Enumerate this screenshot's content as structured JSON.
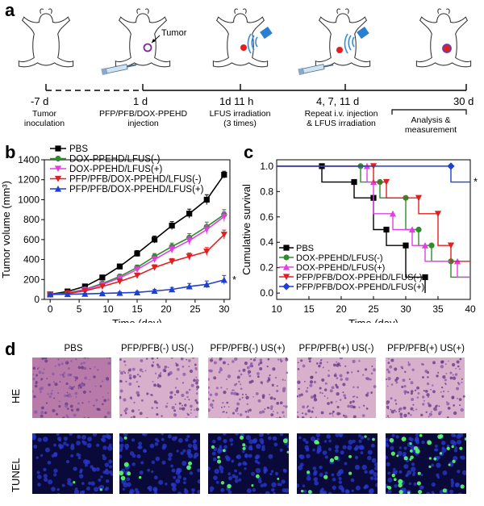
{
  "panel_a": {
    "letter": "a",
    "tumor_label": "Tumor",
    "timeline": [
      {
        "day": "-7 d",
        "desc": "Tumor\ninoculation"
      },
      {
        "day": "1 d",
        "desc": "PFP/PFB/DOX-PPEHD\ninjection"
      },
      {
        "day": "1d 11 h",
        "desc": "LFUS irradiation\n(3 times)"
      },
      {
        "day": "4, 7, 11 d",
        "desc": "Repeat i.v. injection\n& LFUS irradiation"
      },
      {
        "day": "30 d",
        "desc": "Analysis &\nmeasurement"
      }
    ]
  },
  "panel_b": {
    "letter": "b"
  },
  "panel_c": {
    "letter": "c"
  },
  "panel_d": {
    "letter": "d",
    "columns": [
      "PBS",
      "PFP/PFB(-) US(-)",
      "PFP/PFB(-) US(+)",
      "PFP/PFB(+) US(-)",
      "PFP/PFB(+) US(+)"
    ],
    "rows": [
      "HE",
      "TUNEL"
    ]
  },
  "colors": {
    "pbs": "#000000",
    "dox_lfus_minus": "#2e8b2e",
    "dox_lfus_plus": "#e040e0",
    "pfp_lfus_minus": "#e02020",
    "pfp_lfus_plus": "#1f3fd0",
    "he_tissue": "#c98fb8",
    "tunel_bg": "#0a0a3a"
  },
  "chart_data": [
    {
      "type": "line",
      "xlabel": "Time (day)",
      "ylabel": "Tumor volume (mm³)",
      "xlim": [
        -1,
        31
      ],
      "ylim": [
        0,
        1400
      ],
      "xticks": [
        0,
        5,
        10,
        15,
        20,
        25,
        30
      ],
      "yticks": [
        0,
        200,
        400,
        600,
        800,
        1000,
        1200,
        1400
      ],
      "annotation": "*",
      "legend_position": "top-left",
      "x": [
        0,
        3,
        6,
        9,
        12,
        15,
        18,
        21,
        24,
        27,
        30
      ],
      "series": [
        {
          "name": "PBS",
          "marker": "square",
          "values": [
            50,
            80,
            130,
            220,
            330,
            460,
            600,
            740,
            860,
            1000,
            1250
          ],
          "errors": [
            10,
            12,
            15,
            20,
            25,
            30,
            35,
            40,
            45,
            50,
            35
          ]
        },
        {
          "name": "DOX-PPEHD/LFUS(-)",
          "marker": "circle",
          "values": [
            50,
            65,
            100,
            160,
            230,
            320,
            430,
            530,
            620,
            730,
            850
          ],
          "errors": [
            10,
            10,
            12,
            18,
            22,
            25,
            30,
            35,
            40,
            45,
            50
          ]
        },
        {
          "name": "DOX-PPEHD/LFUS(+)",
          "marker": "triangle-down",
          "values": [
            50,
            60,
            95,
            150,
            215,
            300,
            400,
            500,
            590,
            700,
            830
          ],
          "errors": [
            10,
            10,
            12,
            18,
            22,
            25,
            30,
            35,
            40,
            45,
            50
          ]
        },
        {
          "name": "PFP/PFB/DOX-PPEHD/LFUS(-)",
          "marker": "triangle-down",
          "values": [
            50,
            60,
            85,
            130,
            180,
            240,
            320,
            380,
            430,
            480,
            650
          ],
          "errors": [
            10,
            10,
            12,
            15,
            18,
            22,
            28,
            30,
            35,
            40,
            45
          ]
        },
        {
          "name": "PFP/PFB/DOX-PPEHD/LFUS(+)",
          "marker": "triangle-up",
          "values": [
            50,
            52,
            55,
            60,
            65,
            70,
            85,
            100,
            130,
            150,
            195
          ],
          "errors": [
            8,
            8,
            8,
            10,
            10,
            12,
            15,
            20,
            30,
            35,
            45
          ]
        }
      ]
    },
    {
      "type": "line",
      "xlabel": "Time (day)",
      "ylabel": "Cumulative survival",
      "xlim": [
        10,
        40
      ],
      "ylim": [
        -0.05,
        1.05
      ],
      "xticks": [
        10,
        15,
        20,
        25,
        30,
        35,
        40
      ],
      "yticks": [
        0.0,
        0.2,
        0.4,
        0.6,
        0.8,
        1.0
      ],
      "annotation": "*",
      "legend_position": "bottom-left",
      "series": [
        {
          "name": "PBS",
          "marker": "square",
          "steps": [
            [
              10,
              1.0
            ],
            [
              17,
              0.875
            ],
            [
              22,
              0.75
            ],
            [
              25,
              0.5
            ],
            [
              27,
              0.375
            ],
            [
              30,
              0.125
            ],
            [
              33,
              0
            ]
          ]
        },
        {
          "name": "DOX-PPEHD/LFUS(-)",
          "marker": "circle",
          "steps": [
            [
              10,
              1.0
            ],
            [
              23,
              0.875
            ],
            [
              26,
              0.75
            ],
            [
              30,
              0.5
            ],
            [
              32,
              0.375
            ],
            [
              34,
              0.25
            ],
            [
              37,
              0.125
            ]
          ]
        },
        {
          "name": "DOX-PPEHD/LFUS(+)",
          "marker": "triangle-up",
          "steps": [
            [
              10,
              1.0
            ],
            [
              24,
              0.875
            ],
            [
              25,
              0.625
            ],
            [
              28,
              0.5
            ],
            [
              31,
              0.375
            ],
            [
              33,
              0.25
            ],
            [
              38,
              0.125
            ]
          ]
        },
        {
          "name": "PFP/PFB/DOX-PPEHD/LFUS(-)",
          "marker": "triangle-down",
          "steps": [
            [
              10,
              1.0
            ],
            [
              25,
              0.875
            ],
            [
              27,
              0.75
            ],
            [
              32,
              0.625
            ],
            [
              35,
              0.375
            ],
            [
              37,
              0.25
            ]
          ]
        },
        {
          "name": "PFP/PFB/DOX-PPEHD/LFUS(+)",
          "marker": "diamond",
          "steps": [
            [
              10,
              1.0
            ],
            [
              37,
              0.875
            ]
          ]
        }
      ]
    }
  ]
}
